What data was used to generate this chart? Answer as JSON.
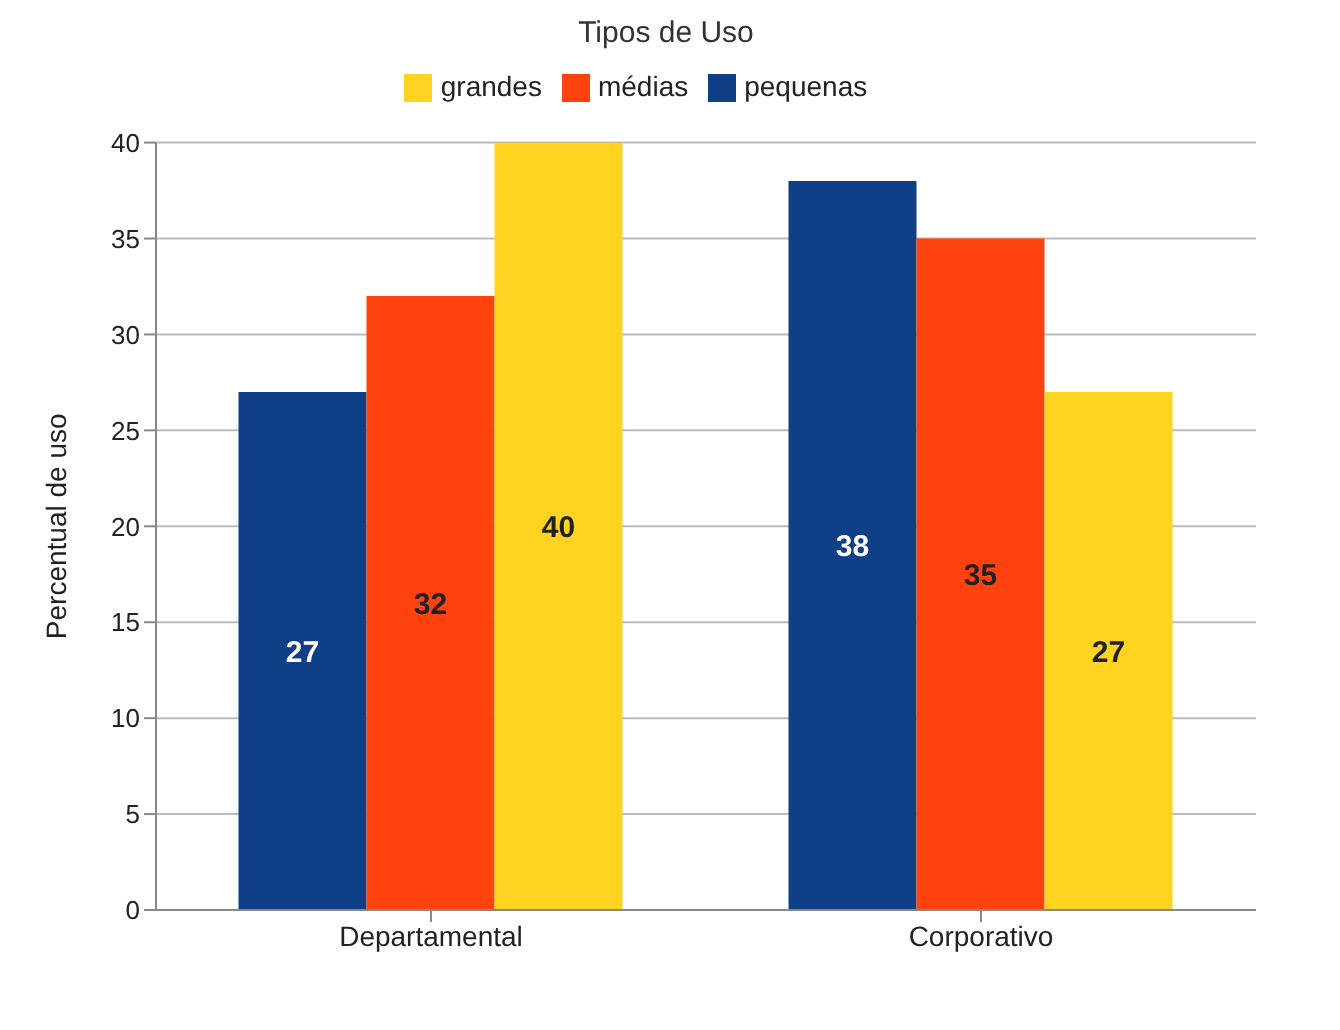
{
  "chart_data": {
    "type": "bar",
    "title": "Tipos de Uso",
    "ylabel": "Percentual de uso",
    "categories": [
      "Departamental",
      "Corporativo"
    ],
    "series": [
      {
        "name": "pequenas",
        "color": "#0e3f87",
        "values": [
          27,
          38
        ]
      },
      {
        "name": "médias",
        "color": "#ff420e",
        "values": [
          32,
          35
        ]
      },
      {
        "name": "grandes",
        "color": "#ffd320",
        "values": [
          40,
          27
        ]
      }
    ],
    "ylim": [
      0,
      40
    ],
    "yticks": [
      0,
      5,
      10,
      15,
      20,
      25,
      30,
      35,
      40
    ],
    "grid": "y",
    "legend": "top",
    "data_labels": true
  }
}
